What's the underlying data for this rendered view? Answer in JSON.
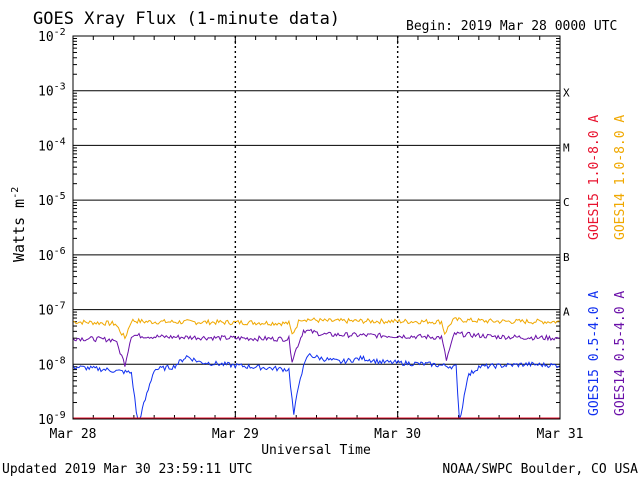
{
  "chart_data": {
    "type": "line",
    "title": "GOES Xray Flux (1-minute data)",
    "begin_label": "Begin:  2019 Mar 28 0000 UTC",
    "ylabel": "Watts m",
    "ylabel_exp": "-2",
    "xlabel": "Universal Time",
    "yscale": "log",
    "ylim": [
      1e-09,
      0.01
    ],
    "ytick_exponents": [
      "-9",
      "-8",
      "-7",
      "-6",
      "-5",
      "-4",
      "-3",
      "-2"
    ],
    "xlim_days": [
      0,
      3
    ],
    "xticks": [
      "Mar 28",
      "Mar 29",
      "Mar 30",
      "Mar 31"
    ],
    "flare_classes": [
      "X",
      "M",
      "C",
      "B",
      "A"
    ],
    "legend_right": [
      {
        "name": "GOES15 1.0-8.0 A",
        "color": "#e8112d"
      },
      {
        "name": "GOES14 1.0-8.0 A",
        "color": "#f0a800"
      }
    ],
    "legend_left_bottom": [
      {
        "name": "GOES15 0.5-4.0 A",
        "color": "#1030f0"
      },
      {
        "name": "GOES14 0.5-4.0 A",
        "color": "#6a0fa8"
      }
    ],
    "series": [
      {
        "name": "GOES14 1.0-8.0 A",
        "color": "#f0a800",
        "points": [
          [
            0,
            6e-08
          ],
          [
            0.18,
            5.7e-08
          ],
          [
            0.26,
            5.5e-08
          ],
          [
            0.32,
            3e-08
          ],
          [
            0.36,
            6.3e-08
          ],
          [
            0.45,
            6e-08
          ],
          [
            0.75,
            5.9e-08
          ],
          [
            1.1,
            5.8e-08
          ],
          [
            1.33,
            5.6e-08
          ],
          [
            1.35,
            3.5e-08
          ],
          [
            1.4,
            6.8e-08
          ],
          [
            1.55,
            6.2e-08
          ],
          [
            2.0,
            6.1e-08
          ],
          [
            2.27,
            6e-08
          ],
          [
            2.29,
            3.7e-08
          ],
          [
            2.34,
            6.5e-08
          ],
          [
            2.6,
            6.1e-08
          ],
          [
            3.0,
            6e-08
          ]
        ]
      },
      {
        "name": "GOES14 0.5-4.0 A",
        "color": "#6a0fa8",
        "points": [
          [
            0,
            3e-08
          ],
          [
            0.26,
            2.8e-08
          ],
          [
            0.32,
            1e-08
          ],
          [
            0.36,
            3.4e-08
          ],
          [
            0.5,
            3.2e-08
          ],
          [
            1.0,
            3e-08
          ],
          [
            1.33,
            2.9e-08
          ],
          [
            1.35,
            1.2e-08
          ],
          [
            1.42,
            4.2e-08
          ],
          [
            1.55,
            3.5e-08
          ],
          [
            2.0,
            3.3e-08
          ],
          [
            2.27,
            3.1e-08
          ],
          [
            2.3,
            1.2e-08
          ],
          [
            2.35,
            3.6e-08
          ],
          [
            2.6,
            3.2e-08
          ],
          [
            3.0,
            3e-08
          ]
        ]
      },
      {
        "name": "GOES15 0.5-4.0 A",
        "color": "#1030f0",
        "points": [
          [
            0,
            9e-09
          ],
          [
            0.2,
            8e-09
          ],
          [
            0.36,
            7e-09
          ],
          [
            0.4,
            8e-10
          ],
          [
            0.5,
            8e-09
          ],
          [
            0.62,
            9e-09
          ],
          [
            0.7,
            1.4e-08
          ],
          [
            0.78,
            1.1e-08
          ],
          [
            1.0,
            9.5e-09
          ],
          [
            1.33,
            8e-09
          ],
          [
            1.36,
            1.2e-09
          ],
          [
            1.4,
            6e-09
          ],
          [
            1.45,
            1.5e-08
          ],
          [
            1.52,
            1.3e-08
          ],
          [
            1.65,
            1.1e-08
          ],
          [
            1.78,
            1.3e-08
          ],
          [
            1.9,
            1.1e-08
          ],
          [
            2.2,
            1e-08
          ],
          [
            2.36,
            9e-09
          ],
          [
            2.38,
            8e-10
          ],
          [
            2.43,
            6e-09
          ],
          [
            2.5,
            9e-09
          ],
          [
            2.8,
            1e-08
          ],
          [
            3.0,
            9.5e-09
          ]
        ]
      }
    ]
  },
  "footer": {
    "updated": "Updated 2019 Mar 30 23:59:11 UTC",
    "credit": "NOAA/SWPC Boulder, CO USA"
  }
}
